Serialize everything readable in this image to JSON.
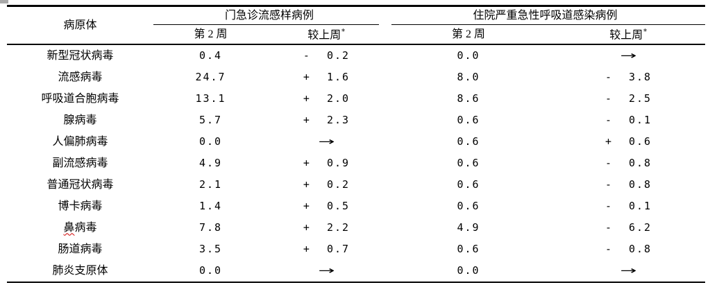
{
  "document": {
    "table": {
      "header": {
        "pathogen": "病原体",
        "group_ili": "门急诊流感样病例",
        "group_sari": "住院严重急性呼吸道感染病例",
        "ili_week": "第 2 周",
        "ili_change": "较上周",
        "ili_change_note": "*",
        "sari_week": "第 2 周",
        "sari_change": "较上周",
        "sari_change_note": "*"
      },
      "rows": [
        {
          "pathogen": "新型冠状病毒",
          "ili_week2": "0.4",
          "ili_change": "- 0.2",
          "sari_week2": "0.0",
          "sari_change": "→"
        },
        {
          "pathogen": "流感病毒",
          "ili_week2": "24.7",
          "ili_change": "+ 1.6",
          "sari_week2": "8.0",
          "sari_change": "- 3.8"
        },
        {
          "pathogen": "呼吸道合胞病毒",
          "ili_week2": "13.1",
          "ili_change": "+ 2.0",
          "sari_week2": "8.6",
          "sari_change": "- 2.5"
        },
        {
          "pathogen": "腺病毒",
          "ili_week2": "5.7",
          "ili_change": "+ 2.3",
          "sari_week2": "0.6",
          "sari_change": "- 0.1"
        },
        {
          "pathogen": "人偏肺病毒",
          "ili_week2": "0.0",
          "ili_change": "→",
          "sari_week2": "0.6",
          "sari_change": "+ 0.6"
        },
        {
          "pathogen": "副流感病毒",
          "ili_week2": "4.9",
          "ili_change": "+ 0.9",
          "sari_week2": "0.6",
          "sari_change": "- 0.8"
        },
        {
          "pathogen": "普通冠状病毒",
          "ili_week2": "2.1",
          "ili_change": "+ 0.2",
          "sari_week2": "0.6",
          "sari_change": "- 0.8"
        },
        {
          "pathogen": "博卡病毒",
          "ili_week2": "1.4",
          "ili_change": "+ 0.5",
          "sari_week2": "0.6",
          "sari_change": "- 0.1"
        },
        {
          "pathogen_first": "鼻",
          "pathogen_rest": "病毒",
          "ili_week2": "7.8",
          "ili_change": "+ 2.2",
          "sari_week2": "4.9",
          "sari_change": "- 6.2"
        },
        {
          "pathogen": "肠道病毒",
          "ili_week2": "3.5",
          "ili_change": "+ 0.7",
          "sari_week2": "0.6",
          "sari_change": "- 0.8"
        },
        {
          "pathogen": "肺炎支原体",
          "ili_week2": "0.0",
          "ili_change": "→",
          "sari_week2": "0.0",
          "sari_change": "→"
        }
      ]
    }
  }
}
